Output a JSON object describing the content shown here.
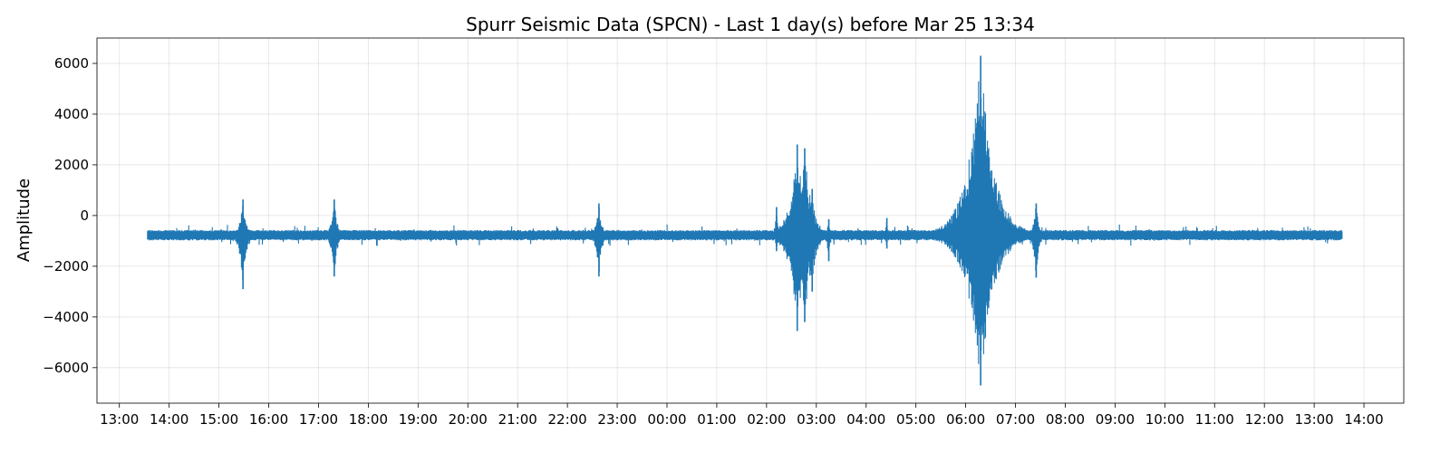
{
  "chart_data": {
    "type": "line",
    "title": "Spurr Seismic Data (SPCN) - Last 1 day(s) before Mar 25 13:34",
    "xlabel": "",
    "ylabel": "Amplitude",
    "xlim": [
      "Mar 24 12:33",
      "Mar 25 14:48"
    ],
    "ylim": [
      -7400,
      7000
    ],
    "grid": true,
    "color": "#1f77b4",
    "x_tick_labels": [
      "13:00",
      "14:00",
      "15:00",
      "16:00",
      "17:00",
      "18:00",
      "19:00",
      "20:00",
      "21:00",
      "22:00",
      "23:00",
      "00:00",
      "01:00",
      "02:00",
      "03:00",
      "04:00",
      "05:00",
      "06:00",
      "07:00",
      "08:00",
      "09:00",
      "10:00",
      "11:00",
      "12:00",
      "13:00",
      "14:00"
    ],
    "y_ticks": [
      -6000,
      -4000,
      -2000,
      0,
      2000,
      4000,
      6000
    ],
    "y_tick_labels": [
      "−6000",
      "−4000",
      "−2000",
      "0",
      "2000",
      "4000",
      "6000"
    ],
    "series": [
      {
        "start": "Mar 24 13:34",
        "end": "Mar 25 13:34",
        "baseline": -780,
        "noise_band": [
          -950,
          -600
        ],
        "events": [
          {
            "time": "Mar 24 15:29",
            "min": -2900,
            "max": 630
          },
          {
            "time": "Mar 24 17:19",
            "min": -2400,
            "max": 630
          },
          {
            "time": "Mar 24 22:38",
            "min": -2400,
            "max": 480
          },
          {
            "time": "Mar 25 02:12",
            "min": -1400,
            "max": 330
          },
          {
            "time": "Mar 25 02:37",
            "min": -4550,
            "max": 2800
          },
          {
            "time": "Mar 25 02:46",
            "min": -4200,
            "max": 2650
          },
          {
            "time": "Mar 25 02:55",
            "min": -3000,
            "max": 1050
          },
          {
            "time": "Mar 25 03:15",
            "min": -1800,
            "max": -150
          },
          {
            "time": "Mar 25 04:25",
            "min": -1300,
            "max": -100
          },
          {
            "time": "Mar 25 06:18",
            "min": -6700,
            "max": 6300
          },
          {
            "time": "Mar 25 07:25",
            "min": -2450,
            "max": 480
          }
        ]
      }
    ]
  }
}
